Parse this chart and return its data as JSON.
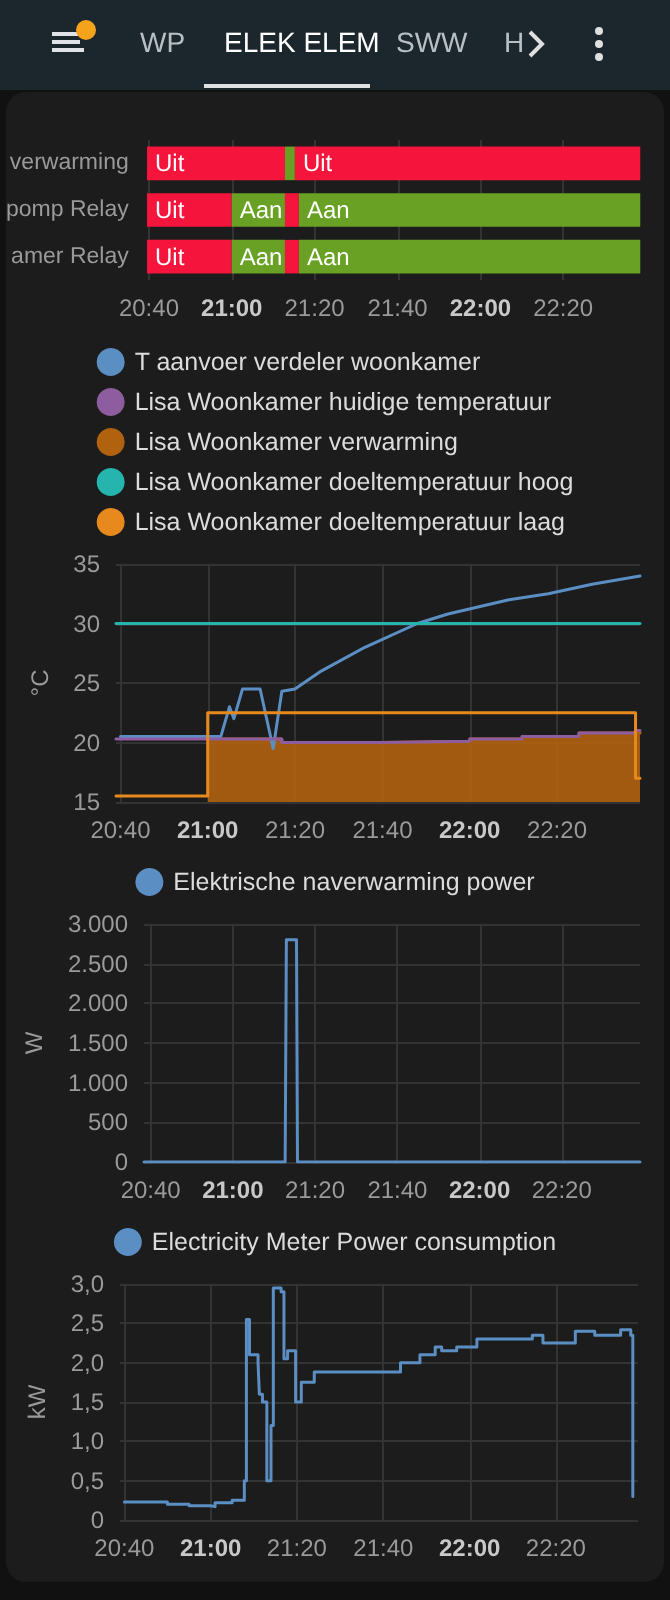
{
  "chart_data": [
    {
      "type": "bar",
      "orientation": "horizontal",
      "annotations": [
        "WP",
        "ELEK ELEM",
        "SWW",
        "H"
      ],
      "categories": [
        "verwarming",
        "pomp Relay",
        "amer Relay"
      ],
      "series": [
        {
          "colors": [
            "#f5153c",
            "#f5153c",
            "#f5153c"
          ],
          "base": [
            20.659,
            20.659,
            20.659
          ],
          "values": [
            0.555,
            0.341,
            0.341
          ],
          "value_labels": [
            "Uit",
            "Uit",
            "Uit"
          ]
        },
        {
          "colors": [
            "#68a124",
            "#68a124",
            "#68a124"
          ],
          "base": [
            21.214,
            21.0,
            21.0
          ],
          "values": [
            0.04,
            0.214,
            0.214
          ],
          "value_labels": [
            null,
            "Aan",
            "Aan"
          ]
        },
        {
          "colors": [
            "#f5153c",
            "#f5153c",
            "#f5153c"
          ],
          "base": [
            21.254,
            21.214,
            21.214
          ],
          "values": [
            1.389,
            0.056,
            0.056
          ],
          "value_labels": [
            "Uit",
            null,
            null
          ]
        },
        {
          "colors": [
            null,
            "#68a124",
            "#68a124"
          ],
          "base": [
            null,
            21.27,
            21.27
          ],
          "values": [
            null,
            1.373,
            1.373
          ],
          "value_labels": [
            null,
            "Aan",
            "Aan"
          ]
        }
      ],
      "xlim": [
        20.65,
        22.65
      ],
      "xticks": [
        {
          "value": 20.667,
          "label": "20:40"
        },
        {
          "value": 21,
          "label": "21:00"
        },
        {
          "value": 21.333,
          "label": "21:20"
        },
        {
          "value": 21.667,
          "label": "21:40"
        },
        {
          "value": 22,
          "label": "22:00"
        },
        {
          "value": 22.333,
          "label": "22:20"
        }
      ],
      "grid": "x"
    },
    {
      "type": "line",
      "ylabel": "°C",
      "legend": "top",
      "grid": true,
      "marker": "none",
      "xlim": [
        20.65,
        22.65
      ],
      "ylim": [
        15,
        35
      ],
      "yticks": [
        15,
        20,
        25,
        30,
        35
      ],
      "xticks": [
        {
          "value": 20.667,
          "label": "20:40"
        },
        {
          "value": 21,
          "label": "21:00"
        },
        {
          "value": 21.333,
          "label": "21:20"
        },
        {
          "value": 21.667,
          "label": "21:40"
        },
        {
          "value": 22,
          "label": "22:00"
        },
        {
          "value": 22.333,
          "label": "22:20"
        }
      ],
      "series": [
        {
          "name": "T aanvoer verdeler woonkamer",
          "color": "#5b8fc4",
          "x": [
            20.667,
            21.05,
            21.083,
            21.1,
            21.133,
            21.2,
            21.25,
            21.283,
            21.333,
            21.433,
            21.6,
            21.8,
            21.917,
            22.15,
            22.3,
            22.467,
            22.65
          ],
          "values": [
            20.5,
            20.5,
            23,
            22,
            24.5,
            24.5,
            19.5,
            24.3,
            24.5,
            26,
            28,
            30,
            30.8,
            32,
            32.5,
            33.3,
            34
          ]
        },
        {
          "name": "Lisa Woonkamer huidige temperatuur",
          "type": "step",
          "color": "#8e5d9f",
          "x": [
            20.65,
            21.283,
            21.667,
            22.0,
            22.2,
            22.417,
            22.633,
            22.65
          ],
          "values": [
            20.3,
            20.0,
            20.1,
            20.3,
            20.5,
            20.8,
            21.0,
            21.0
          ]
        },
        {
          "name": "Lisa Woonkamer verwarming",
          "type": "area",
          "color": "#b0620f",
          "x": [
            21.0,
            21.283,
            21.667,
            22.0,
            22.2,
            22.417,
            22.65
          ],
          "values": [
            20.3,
            20.0,
            20.1,
            20.3,
            20.5,
            20.8,
            20.8
          ]
        },
        {
          "name": "Lisa Woonkamer doeltemperatuur hoog",
          "type": "step",
          "color": "#26b5ae",
          "x": [
            20.65,
            22.65
          ],
          "values": [
            30,
            30
          ]
        },
        {
          "name": "Lisa Woonkamer doeltemperatuur laag",
          "type": "step",
          "color": "#e8891e",
          "x": [
            20.65,
            21.0,
            22.633,
            22.65
          ],
          "values": [
            15.5,
            22.5,
            17,
            17
          ]
        }
      ]
    },
    {
      "type": "line",
      "ylabel": "W",
      "legend": "top",
      "grid": true,
      "marker": "none",
      "xlim": [
        20.64,
        22.65
      ],
      "ylim": [
        0,
        3000
      ],
      "yticks": [
        0,
        {
          "value": 500,
          "label": "500"
        },
        {
          "value": 1000,
          "label": "1.000"
        },
        {
          "value": 1500,
          "label": "1.500"
        },
        {
          "value": 2000,
          "label": "2.000"
        },
        {
          "value": 2500,
          "label": "2.500"
        },
        {
          "value": 3000,
          "label": "3.000"
        }
      ],
      "xticks": [
        {
          "value": 20.667,
          "label": "20:40"
        },
        {
          "value": 21,
          "label": "21:00"
        },
        {
          "value": 21.333,
          "label": "21:20"
        },
        {
          "value": 21.667,
          "label": "21:40"
        },
        {
          "value": 22,
          "label": "22:00"
        },
        {
          "value": 22.333,
          "label": "22:20"
        }
      ],
      "series": [
        {
          "name": "Elektrische naverwarming power",
          "color": "#5b8fc4",
          "x": [
            20.64,
            21.212,
            21.217,
            21.258,
            21.262,
            22.65
          ],
          "values": [
            0,
            0,
            2800,
            2800,
            0,
            0
          ]
        }
      ]
    },
    {
      "type": "step",
      "ylabel": "kW",
      "legend": "top",
      "grid": true,
      "marker": "none",
      "xlim": [
        20.65,
        22.65
      ],
      "ylim": [
        0,
        3
      ],
      "yticks": [
        0,
        {
          "value": 0.5,
          "label": "0,5"
        },
        {
          "value": 1,
          "label": "1,0"
        },
        {
          "value": 1.5,
          "label": "1,5"
        },
        {
          "value": 2,
          "label": "2,0"
        },
        {
          "value": 2.5,
          "label": "2,5"
        },
        {
          "value": 3,
          "label": "3,0"
        }
      ],
      "xticks": [
        {
          "value": 20.667,
          "label": "20:40"
        },
        {
          "value": 21,
          "label": "21:00"
        },
        {
          "value": 21.333,
          "label": "21:20"
        },
        {
          "value": 21.667,
          "label": "21:40"
        },
        {
          "value": 22,
          "label": "22:00"
        },
        {
          "value": 22.333,
          "label": "22:20"
        }
      ],
      "series": [
        {
          "name": "Electricity Meter Power consumption",
          "color": "#5b8fc4",
          "x": [
            20.667,
            20.833,
            20.917,
            21.0,
            21.017,
            21.083,
            21.13,
            21.138,
            21.15,
            21.183,
            21.188,
            21.2,
            21.217,
            21.233,
            21.242,
            21.272,
            21.283,
            21.297,
            21.328,
            21.35,
            21.4,
            21.533,
            21.733,
            21.808,
            21.867,
            21.892,
            21.95,
            22.028,
            22.23,
            22.242,
            22.283,
            22.358,
            22.408,
            22.483,
            22.583,
            22.622,
            22.63
          ],
          "values": [
            0.23,
            0.2,
            0.18,
            0.17,
            0.22,
            0.25,
            0.5,
            2.55,
            2.1,
            2.0,
            1.6,
            1.5,
            0.5,
            1.2,
            2.95,
            2.9,
            2.05,
            2.15,
            1.5,
            1.75,
            1.88,
            1.88,
            2.0,
            2.1,
            2.2,
            2.15,
            2.2,
            2.3,
            2.3,
            2.35,
            2.25,
            2.25,
            2.4,
            2.35,
            2.42,
            2.35,
            0.3
          ]
        }
      ]
    }
  ]
}
